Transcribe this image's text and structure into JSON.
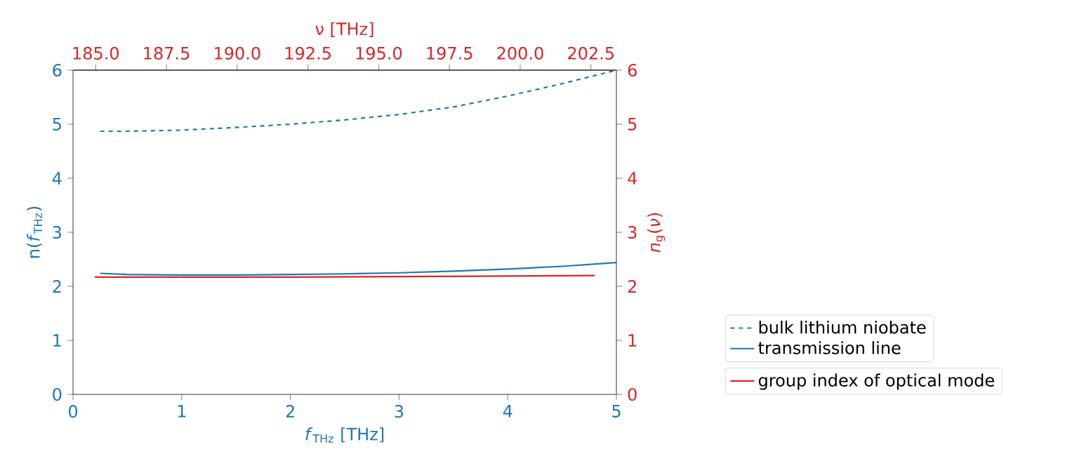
{
  "chart_data": {
    "type": "line",
    "xlabel": "*f*$_{THz}$ [THz]",
    "ylabel": "n(*f*$_{THz}$)",
    "y2label": "*n*$_{g}$(*ν*)",
    "x2label": "ν  [THz]",
    "xlim": [
      0,
      5
    ],
    "xticks": [
      0,
      1,
      2,
      3,
      4,
      5
    ],
    "ylim": [
      0,
      6
    ],
    "yticks": [
      0,
      1,
      2,
      3,
      4,
      5,
      6
    ],
    "y2lim": [
      0,
      6
    ],
    "y2ticks": [
      0,
      1,
      2,
      3,
      4,
      5,
      6
    ],
    "x2lim": [
      184.2,
      203.4
    ],
    "x2ticks": [
      {
        "value": 185,
        "label": "185.0"
      },
      {
        "value": 187.5,
        "label": "187.5"
      },
      {
        "value": 190,
        "label": "190.0"
      },
      {
        "value": 192.5,
        "label": "192.5"
      },
      {
        "value": 195,
        "label": "195.0"
      },
      {
        "value": 197.5,
        "label": "197.5"
      },
      {
        "value": 200,
        "label": "200.0"
      },
      {
        "value": 202.5,
        "label": "202.5"
      }
    ],
    "grid": false,
    "legend": "bottom right",
    "marker": "none",
    "series": [
      {
        "name": "bulk lithium niobate",
        "color": "#1f77b4",
        "line_style": "dashed",
        "x": [
          0.25,
          0.5,
          1,
          1.5,
          2,
          2.5,
          3,
          3.5,
          4,
          4.5,
          5
        ],
        "values": [
          4.87,
          4.87,
          4.89,
          4.94,
          5.0,
          5.08,
          5.18,
          5.32,
          5.52,
          5.75,
          6.0
        ]
      },
      {
        "name": "transmission line",
        "color": "#1f77b4",
        "line_style": "solid",
        "x": [
          0.25,
          0.5,
          1,
          1.5,
          2,
          2.5,
          3,
          3.5,
          4,
          4.5,
          5
        ],
        "values": [
          2.24,
          2.22,
          2.21,
          2.21,
          2.22,
          2.23,
          2.25,
          2.28,
          2.32,
          2.37,
          2.44
        ]
      },
      {
        "name": "group index of optical mode",
        "color": "#d62728",
        "line_style": "solid",
        "axis": "y2",
        "x": [
          0.2,
          1,
          2,
          3,
          4,
          4.8
        ],
        "values": [
          2.17,
          2.17,
          2.17,
          2.18,
          2.19,
          2.2
        ]
      }
    ]
  }
}
